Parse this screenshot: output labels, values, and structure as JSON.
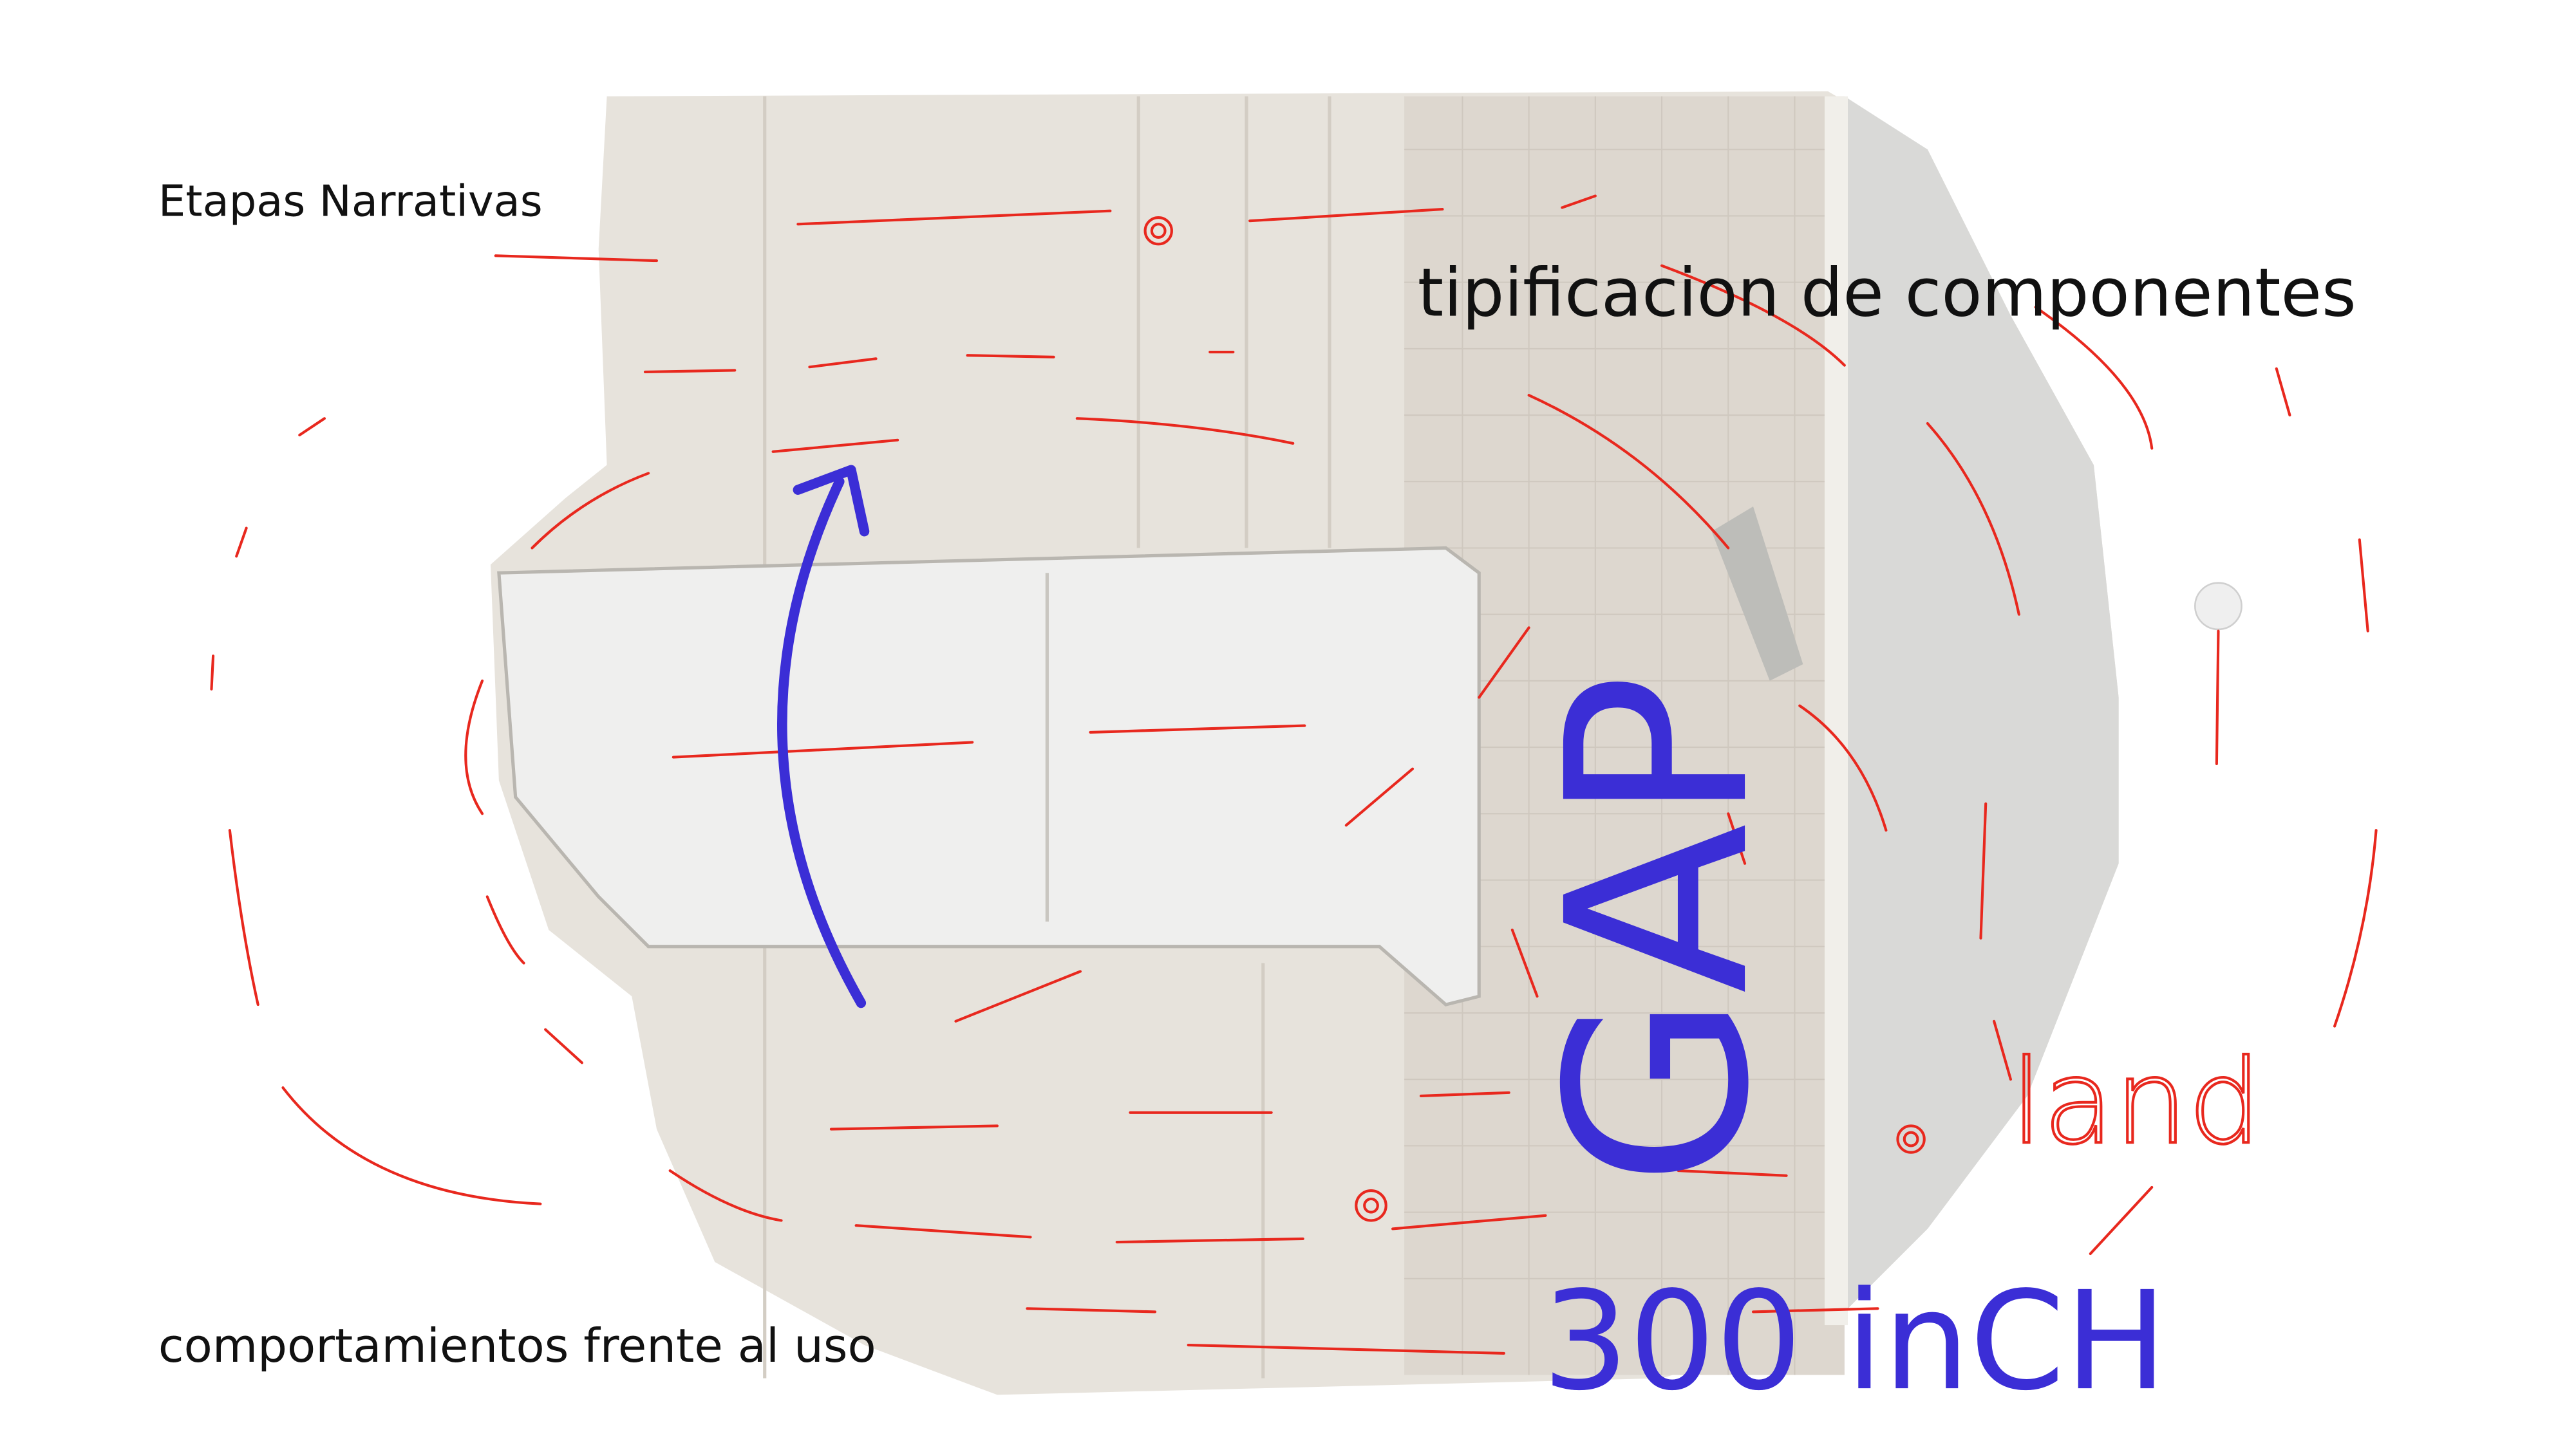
{
  "labels": {
    "top_left": "Etapas Narrativas",
    "top_right": "tipificacion de componentes",
    "bottom_left": "comportamientos frente al uso"
  },
  "handwriting": {
    "gap": "GAP",
    "distance": "300 inCH",
    "land": "land"
  }
}
